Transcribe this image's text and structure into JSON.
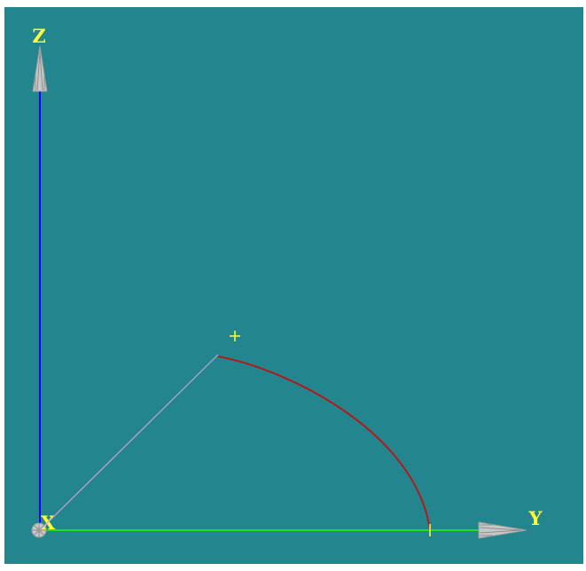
{
  "viewport": {
    "background": "#23868E",
    "border": "#FFFFFF"
  },
  "axes": {
    "x": {
      "label": "X",
      "color": "#FFFF33"
    },
    "y": {
      "label": "Y",
      "color": "#FFFF33",
      "line_color": "#22DD22"
    },
    "z": {
      "label": "Z",
      "color": "#FFFF33",
      "line_color": "#0000FF"
    },
    "arrow_color": "#C8C8C8"
  },
  "geometry": {
    "radial_line_color": "#C8A0E0",
    "arc_color": "#B21A1A",
    "marker_color": "#FFFF33"
  }
}
